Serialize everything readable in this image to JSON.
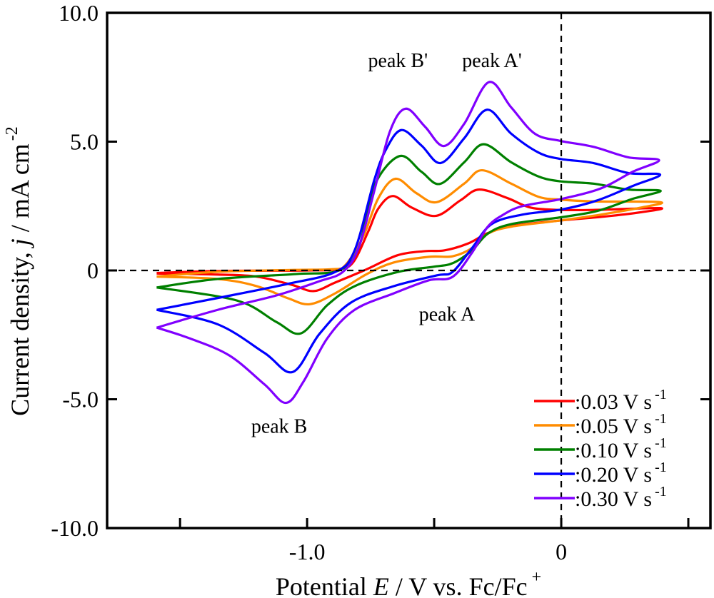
{
  "chart_data": {
    "type": "line",
    "title": "",
    "xlabel": {
      "pre": "Potential ",
      "var": "E",
      "post": " / V vs. Fc/Fc",
      "sup": "+"
    },
    "ylabel": {
      "pre": "Current density, ",
      "var": "j",
      "post": " / mA cm",
      "sup": "-2"
    },
    "xlim": [
      -1.787,
      0.587
    ],
    "ylim": [
      -10,
      10
    ],
    "xticks": [
      {
        "v": -1.0,
        "label": "-1.0"
      },
      {
        "v": 0,
        "label": "0"
      }
    ],
    "xminor": [
      -1.5,
      -0.5,
      0.5
    ],
    "yticks": [
      {
        "v": 10,
        "label": "10.0"
      },
      {
        "v": 5,
        "label": "5.0"
      },
      {
        "v": 0,
        "label": "0"
      },
      {
        "v": -5,
        "label": "-5.0"
      },
      {
        "v": -10,
        "label": "-10.0"
      }
    ],
    "reference_lines": {
      "x": 0,
      "y": 0,
      "style": "dashed"
    },
    "legend_position": "bottom-right",
    "annotations": [
      {
        "text": "peak B'",
        "E": -0.76,
        "j": 7.9
      },
      {
        "text": "peak A'",
        "E": -0.39,
        "j": 7.9
      },
      {
        "text": "peak A",
        "E": -0.56,
        "j": -1.95
      },
      {
        "text": "peak B",
        "E": -1.22,
        "j": -6.3
      }
    ],
    "series": [
      {
        "name": ":0.03 V s",
        "sup": "-1",
        "color": "#ff0000",
        "points": [
          [
            -1.592,
            -0.1
          ],
          [
            -1.35,
            -0.02
          ],
          [
            -1.0,
            0.0
          ],
          [
            -0.88,
            0.05
          ],
          [
            -0.82,
            0.3
          ],
          [
            -0.76,
            1.5
          ],
          [
            -0.72,
            2.4
          ],
          [
            -0.663,
            2.89
          ],
          [
            -0.588,
            2.44
          ],
          [
            -0.492,
            2.12
          ],
          [
            -0.397,
            2.72
          ],
          [
            -0.323,
            3.14
          ],
          [
            -0.212,
            2.81
          ],
          [
            -0.12,
            2.44
          ],
          [
            -0.004,
            2.35
          ],
          [
            0.126,
            2.35
          ],
          [
            0.389,
            2.42
          ],
          [
            0.313,
            2.26
          ],
          [
            0.157,
            2.08
          ],
          [
            -0.004,
            1.94
          ],
          [
            -0.197,
            1.72
          ],
          [
            -0.289,
            1.45
          ],
          [
            -0.366,
            1.05
          ],
          [
            -0.459,
            0.78
          ],
          [
            -0.536,
            0.75
          ],
          [
            -0.644,
            0.59
          ],
          [
            -0.767,
            0.04
          ],
          [
            -0.89,
            -0.47
          ],
          [
            -0.975,
            -0.8
          ],
          [
            -1.06,
            -0.56
          ],
          [
            -1.198,
            -0.24
          ],
          [
            -1.352,
            -0.16
          ],
          [
            -1.592,
            -0.12
          ]
        ]
      },
      {
        "name": ":0.05 V s",
        "sup": "-1",
        "color": "#ff8c00",
        "points": [
          [
            -1.592,
            -0.24
          ],
          [
            -1.35,
            -0.05
          ],
          [
            -1.05,
            0.02
          ],
          [
            -0.9,
            0.05
          ],
          [
            -0.85,
            0.2
          ],
          [
            -0.78,
            1.3
          ],
          [
            -0.72,
            2.8
          ],
          [
            -0.652,
            3.56
          ],
          [
            -0.57,
            3.0
          ],
          [
            -0.49,
            2.65
          ],
          [
            -0.382,
            3.37
          ],
          [
            -0.312,
            3.89
          ],
          [
            -0.197,
            3.37
          ],
          [
            -0.09,
            2.86
          ],
          [
            -0.004,
            2.75
          ],
          [
            0.126,
            2.68
          ],
          [
            0.389,
            2.65
          ],
          [
            0.313,
            2.44
          ],
          [
            0.157,
            2.17
          ],
          [
            -0.004,
            1.94
          ],
          [
            -0.197,
            1.7
          ],
          [
            -0.289,
            1.43
          ],
          [
            -0.351,
            0.87
          ],
          [
            -0.428,
            0.55
          ],
          [
            -0.52,
            0.53
          ],
          [
            -0.659,
            0.31
          ],
          [
            -0.767,
            -0.15
          ],
          [
            -0.89,
            -0.89
          ],
          [
            -0.99,
            -1.31
          ],
          [
            -1.075,
            -1.08
          ],
          [
            -1.198,
            -0.61
          ],
          [
            -1.352,
            -0.33
          ],
          [
            -1.592,
            -0.24
          ]
        ]
      },
      {
        "name": ":0.10 V s",
        "sup": "-1",
        "color": "#008000",
        "points": [
          [
            -1.592,
            -0.66
          ],
          [
            -1.352,
            -0.33
          ],
          [
            -1.045,
            -0.14
          ],
          [
            -0.875,
            0.0
          ],
          [
            -0.798,
            0.86
          ],
          [
            -0.736,
            3.28
          ],
          [
            -0.636,
            4.44
          ],
          [
            -0.55,
            3.83
          ],
          [
            -0.477,
            3.36
          ],
          [
            -0.382,
            4.2
          ],
          [
            -0.305,
            4.9
          ],
          [
            -0.197,
            4.2
          ],
          [
            -0.09,
            3.65
          ],
          [
            -0.004,
            3.46
          ],
          [
            0.126,
            3.37
          ],
          [
            0.265,
            3.14
          ],
          [
            0.391,
            3.09
          ],
          [
            0.281,
            2.78
          ],
          [
            0.142,
            2.31
          ],
          [
            -0.004,
            2.06
          ],
          [
            -0.197,
            1.8
          ],
          [
            -0.289,
            1.43
          ],
          [
            -0.351,
            0.78
          ],
          [
            -0.428,
            0.28
          ],
          [
            -0.505,
            0.14
          ],
          [
            -0.644,
            -0.06
          ],
          [
            -0.813,
            -0.61
          ],
          [
            -0.921,
            -1.35
          ],
          [
            -1.024,
            -2.44
          ],
          [
            -1.121,
            -2.0
          ],
          [
            -1.275,
            -1.17
          ],
          [
            -1.592,
            -0.66
          ]
        ]
      },
      {
        "name": ":0.20 V s",
        "sup": "-1",
        "color": "#0000ff",
        "points": [
          [
            -1.592,
            -1.53
          ],
          [
            -1.352,
            -1.07
          ],
          [
            -1.076,
            -0.52
          ],
          [
            -0.89,
            -0.06
          ],
          [
            -0.813,
            0.78
          ],
          [
            -0.736,
            3.5
          ],
          [
            -0.691,
            4.67
          ],
          [
            -0.629,
            5.45
          ],
          [
            -0.55,
            4.85
          ],
          [
            -0.474,
            4.17
          ],
          [
            -0.382,
            5.13
          ],
          [
            -0.292,
            6.24
          ],
          [
            -0.197,
            5.31
          ],
          [
            -0.09,
            4.58
          ],
          [
            -0.004,
            4.33
          ],
          [
            0.126,
            4.17
          ],
          [
            0.265,
            3.78
          ],
          [
            0.389,
            3.72
          ],
          [
            0.281,
            3.28
          ],
          [
            0.142,
            2.72
          ],
          [
            0.003,
            2.37
          ],
          [
            -0.152,
            2.17
          ],
          [
            -0.274,
            1.8
          ],
          [
            -0.351,
            0.87
          ],
          [
            -0.428,
            -0.06
          ],
          [
            -0.489,
            -0.19
          ],
          [
            -0.659,
            -0.61
          ],
          [
            -0.828,
            -1.25
          ],
          [
            -0.952,
            -2.47
          ],
          [
            -1.056,
            -3.94
          ],
          [
            -1.168,
            -3.2
          ],
          [
            -1.352,
            -2.09
          ],
          [
            -1.592,
            -1.53
          ]
        ]
      },
      {
        "name": ":0.30 V s",
        "sup": "-1",
        "color": "#8000ff",
        "points": [
          [
            -1.592,
            -2.22
          ],
          [
            -1.352,
            -1.53
          ],
          [
            -1.121,
            -0.97
          ],
          [
            -0.952,
            -0.42
          ],
          [
            -0.86,
            -0.06
          ],
          [
            -0.798,
            0.86
          ],
          [
            -0.736,
            3.08
          ],
          [
            -0.674,
            5.4
          ],
          [
            -0.612,
            6.28
          ],
          [
            -0.536,
            5.58
          ],
          [
            -0.462,
            4.83
          ],
          [
            -0.382,
            5.69
          ],
          [
            -0.285,
            7.31
          ],
          [
            -0.197,
            6.33
          ],
          [
            -0.104,
            5.31
          ],
          [
            -0.004,
            5.03
          ],
          [
            0.126,
            4.8
          ],
          [
            0.265,
            4.39
          ],
          [
            0.385,
            4.28
          ],
          [
            0.281,
            3.83
          ],
          [
            0.157,
            3.19
          ],
          [
            0.003,
            2.78
          ],
          [
            -0.152,
            2.5
          ],
          [
            -0.227,
            2.17
          ],
          [
            -0.289,
            1.7
          ],
          [
            -0.351,
            0.69
          ],
          [
            -0.428,
            -0.25
          ],
          [
            -0.52,
            -0.38
          ],
          [
            -0.659,
            -0.89
          ],
          [
            -0.813,
            -1.53
          ],
          [
            -0.921,
            -2.64
          ],
          [
            -1.014,
            -4.31
          ],
          [
            -1.083,
            -5.14
          ],
          [
            -1.168,
            -4.42
          ],
          [
            -1.306,
            -3.3
          ],
          [
            -1.461,
            -2.64
          ],
          [
            -1.592,
            -2.22
          ]
        ]
      }
    ]
  }
}
